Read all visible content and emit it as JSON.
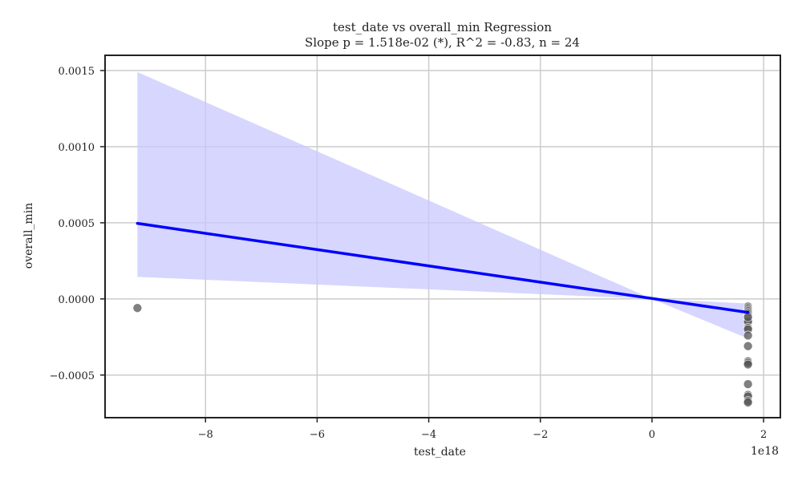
{
  "chart_data": {
    "type": "scatter",
    "title": "test_date vs overall_min Regression",
    "subtitle": "Slope p = 1.518e-02 (*), R^2 = -0.83, n = 24",
    "xlabel": "test_date",
    "ylabel": "overall_min",
    "x_offset_label": "1e18",
    "xlim": [
      -9.8,
      2.3
    ],
    "ylim": [
      -0.00078,
      0.0016
    ],
    "x_scale_factor": 1e+18,
    "grid": true,
    "x_ticks": [
      -8,
      -6,
      -4,
      -2,
      0,
      2
    ],
    "x_tick_labels": [
      "−8",
      "−6",
      "−4",
      "−2",
      "0",
      "2"
    ],
    "y_ticks": [
      -0.0005,
      0.0,
      0.0005,
      0.001,
      0.0015
    ],
    "y_tick_labels": [
      "−0.0005",
      "0.0000",
      "0.0005",
      "0.0010",
      "0.0015"
    ],
    "colors": {
      "points": "#555555",
      "line": "#0000ff",
      "band": "#c8c8ff",
      "grid": "#cccccc",
      "axes": "#222222"
    },
    "series": [
      {
        "kind": "points",
        "x": [
          -9.22,
          1.72,
          1.72,
          1.72,
          1.72,
          1.72,
          1.72,
          1.72,
          1.72,
          1.72,
          1.72,
          1.72,
          1.72,
          1.72,
          1.72,
          1.72,
          1.72,
          1.72,
          1.72,
          1.72,
          1.72,
          1.72,
          1.72,
          1.72
        ],
        "y": [
          -6e-05,
          -5e-05,
          -6e-05,
          -7e-05,
          -8e-05,
          -9e-05,
          -0.0001,
          -0.00011,
          -0.00013,
          -0.00014,
          -0.00015,
          -0.00019,
          -0.0002,
          -0.00024,
          -0.00031,
          -0.00041,
          -0.00042,
          -0.00043,
          -0.00056,
          -0.00063,
          -0.00064,
          -0.00067,
          -0.00068,
          -0.00012
        ]
      },
      {
        "kind": "regression_line",
        "x": [
          -9.22,
          1.72
        ],
        "y": [
          0.000496,
          -8.9e-05
        ]
      },
      {
        "kind": "confidence_band",
        "x": [
          -9.22,
          0.0,
          1.72
        ],
        "upper": [
          0.00149,
          0.0,
          -3e-05
        ],
        "lower": [
          0.000145,
          -0.0,
          -0.00026
        ]
      }
    ]
  }
}
